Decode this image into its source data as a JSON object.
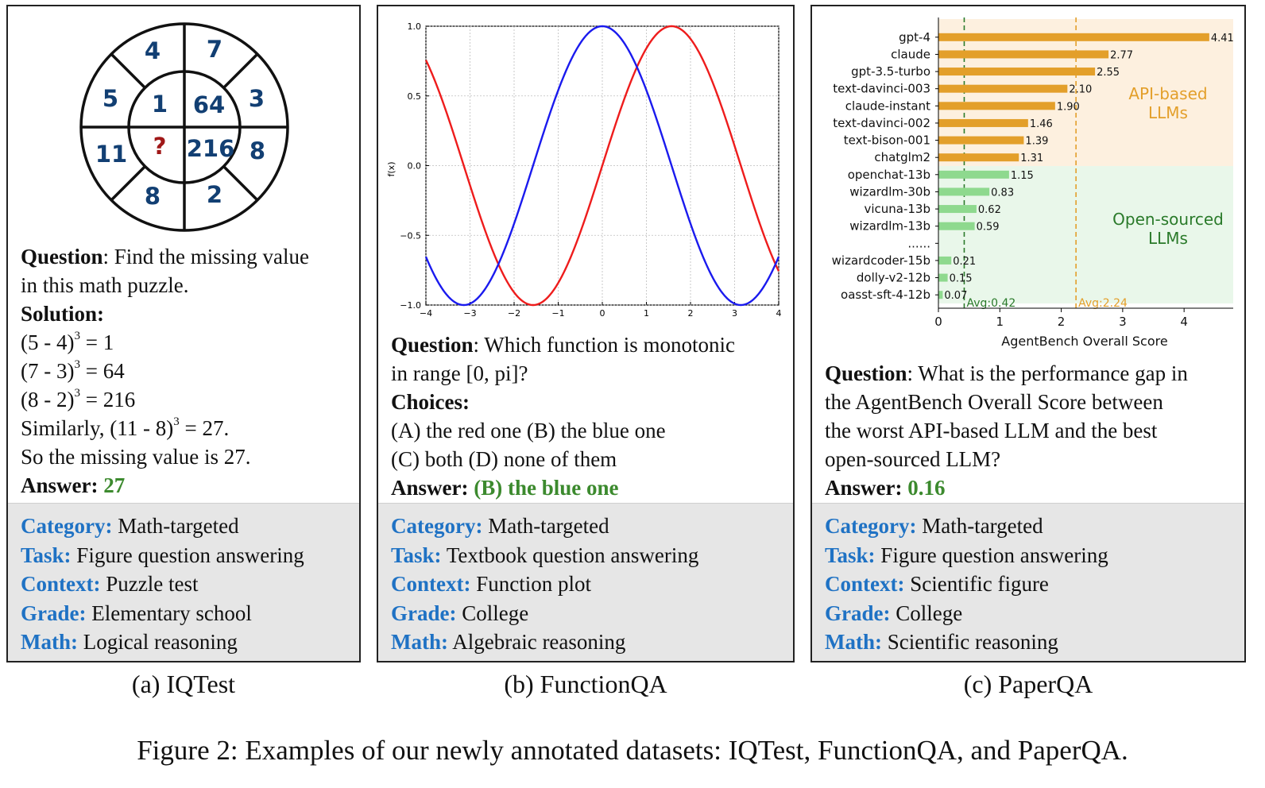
{
  "panels": {
    "a": {
      "puzzle": {
        "outer": [
          "4",
          "7",
          "3",
          "8",
          "2",
          "8",
          "11",
          "5"
        ],
        "inner": [
          "1",
          "64",
          "216",
          "?"
        ]
      },
      "question_label": "Question",
      "question_line1": ": Find the missing value",
      "question_line2": "in this math puzzle.",
      "solution_label": "Solution:",
      "solution_steps": [
        {
          "base": "(5 - 4)",
          "exp": "3",
          "rest": " = 1"
        },
        {
          "base": "(7 - 3)",
          "exp": "3",
          "rest": " = 64"
        },
        {
          "base": "(8 - 2)",
          "exp": "3",
          "rest": " = 216"
        },
        {
          "base": "Similarly, (11 - 8)",
          "exp": "3",
          "rest": " = 27."
        }
      ],
      "conclusion": "So the missing value is 27.",
      "answer_label": "Answer:",
      "answer_value": "27",
      "meta": {
        "category_label": "Category:",
        "category": "Math-targeted",
        "task_label": "Task:",
        "task": "Figure question answering",
        "context_label": "Context:",
        "context": "Puzzle test",
        "grade_label": "Grade:",
        "grade": "Elementary school",
        "math_label": "Math:",
        "math": "Logical reasoning"
      },
      "caption": "(a) IQTest"
    },
    "b": {
      "question_label": "Question",
      "question_line1": ": Which function is monotonic",
      "question_line2": "in range [0, pi]?",
      "choices_label": "Choices:",
      "choices_line1": "(A) the red one (B) the blue one",
      "choices_line2": "(C) both (D) none of them",
      "answer_label": "Answer:",
      "answer_value": "(B) the blue one",
      "meta": {
        "category_label": "Category:",
        "category": "Math-targeted",
        "task_label": "Task:",
        "task": "Textbook question answering",
        "context_label": "Context:",
        "context": "Function plot",
        "grade_label": "Grade:",
        "grade": "College",
        "math_label": "Math:",
        "math": "Algebraic reasoning"
      },
      "caption": "(b) FunctionQA"
    },
    "c": {
      "question_label": "Question",
      "question_line1": ": What is the performance gap in",
      "question_line2": "the AgentBench Overall Score between",
      "question_line3": "the worst API-based LLM and the best",
      "question_line4": "open-sourced LLM?",
      "answer_label": "Answer:",
      "answer_value": "0.16",
      "meta": {
        "category_label": "Category:",
        "category": "Math-targeted",
        "task_label": "Task:",
        "task": "Figure question answering",
        "context_label": "Context:",
        "context": "Scientific figure",
        "grade_label": "Grade:",
        "grade": "College",
        "math_label": "Math:",
        "math": "Scientific reasoning"
      },
      "caption": "(c) PaperQA"
    }
  },
  "chart_data": [
    {
      "type": "line",
      "title": "",
      "xlabel": "",
      "ylabel": "f(x)",
      "xlim": [
        -4,
        4
      ],
      "ylim": [
        -1.0,
        1.0
      ],
      "xticks": [
        "−4",
        "−3",
        "−2",
        "−1",
        "0",
        "1",
        "2",
        "3",
        "4"
      ],
      "yticks": [
        "1.0",
        "0.5",
        "0.0",
        "−0.5",
        "−1.0"
      ],
      "grid": true,
      "series": [
        {
          "name": "red",
          "function": "sin(x)",
          "color": "#ee1c1c"
        },
        {
          "name": "blue",
          "function": "cos(x)",
          "color": "#1a1aee"
        }
      ]
    },
    {
      "type": "bar",
      "orientation": "horizontal",
      "xlabel": "AgentBench Overall Score",
      "xlim": [
        0,
        4.8
      ],
      "xticks": [
        "0",
        "1",
        "2",
        "3",
        "4"
      ],
      "categories": [
        "gpt-4",
        "claude",
        "gpt-3.5-turbo",
        "text-davinci-003",
        "claude-instant",
        "text-davinci-002",
        "text-bison-001",
        "chatglm2",
        "openchat-13b",
        "wizardlm-30b",
        "vicuna-13b",
        "wizardlm-13b",
        "......",
        "wizardcoder-15b",
        "dolly-v2-12b",
        "oasst-sft-4-12b"
      ],
      "values": [
        4.41,
        2.77,
        2.55,
        2.1,
        1.9,
        1.46,
        1.39,
        1.31,
        1.15,
        0.83,
        0.62,
        0.59,
        null,
        0.21,
        0.15,
        0.07
      ],
      "value_labels": [
        "4.41",
        "2.77",
        "2.55",
        "2.10",
        "1.90",
        "1.46",
        "1.39",
        "1.31",
        "1.15",
        "0.83",
        "0.62",
        "0.59",
        "",
        "0.21",
        "0.15",
        "0.07"
      ],
      "groups": [
        {
          "name": "API-based LLMs",
          "line1": "API-based",
          "line2": "LLMs",
          "color": "#e39f2a",
          "bg": "#fdf0df",
          "count": 8
        },
        {
          "name": "Open-sourced LLMs",
          "line1": "Open-sourced",
          "line2": "LLMs",
          "color": "#8ed98e",
          "bg": "#e9f7ea",
          "count": 8
        }
      ],
      "reference_lines": [
        {
          "label": "Avg:0.42",
          "value": 0.42,
          "color": "#2a7a2a"
        },
        {
          "label": "Avg:2.24",
          "value": 2.24,
          "color": "#e39f2a"
        }
      ]
    }
  ],
  "figure_caption": "Figure 2: Examples of our newly annotated datasets: IQTest, FunctionQA, and PaperQA.",
  "colors": {
    "key_blue": "#1f72c4",
    "answer_green": "#3c8a2e",
    "meta_bg": "#e6e6e6"
  }
}
